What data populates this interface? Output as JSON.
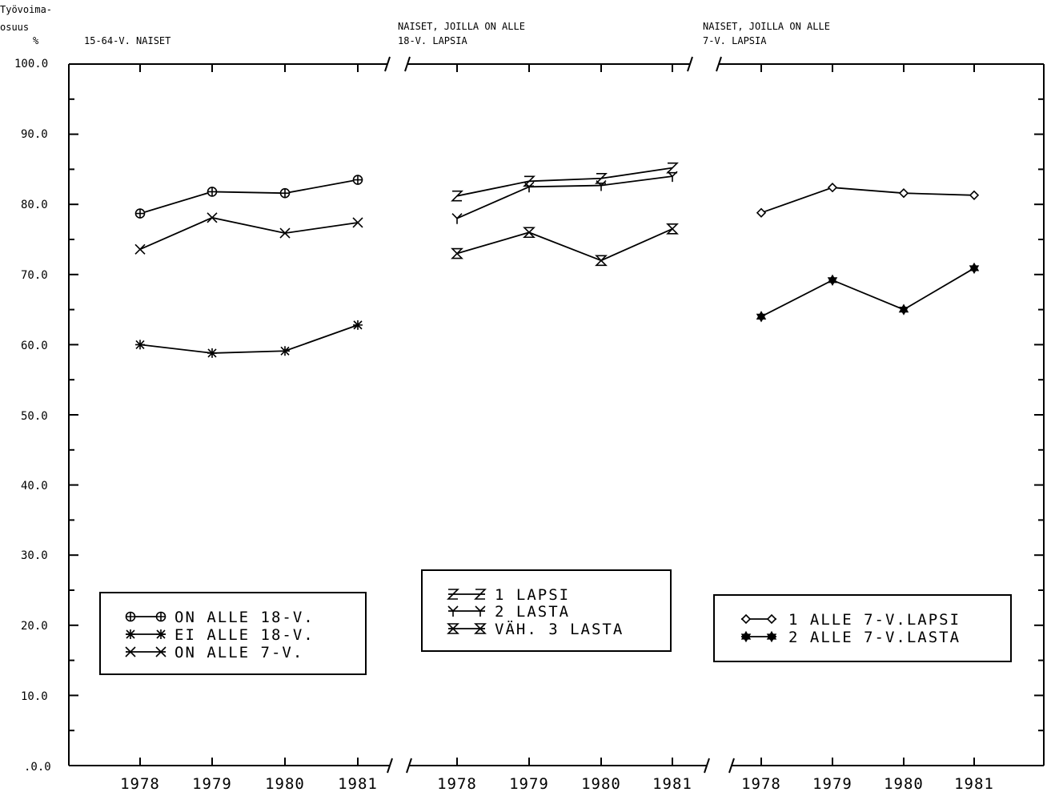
{
  "ylabel": {
    "line1": "Työvoima-",
    "line2": "osuus",
    "unit": "%"
  },
  "panel_titles": [
    {
      "line1": "15-64-V. NAISET",
      "line2": ""
    },
    {
      "line1": "NAISET, JOILLA ON ALLE",
      "line2": "18-V. LAPSIA"
    },
    {
      "line1": "NAISET, JOILLA ON ALLE",
      "line2": "7-V. LAPSIA"
    }
  ],
  "yticks": [
    "100.0",
    "90.0",
    "80.0",
    "70.0",
    "60.0",
    "50.0",
    "40.0",
    "30.0",
    "20.0",
    "10.0",
    ".0.0"
  ],
  "chart_data": [
    {
      "type": "line",
      "title": "15-64-V. NAISET",
      "ylabel": "Työvoima-osuus %",
      "ylim": [
        0,
        100
      ],
      "categories": [
        "1978",
        "1979",
        "1980",
        "1981"
      ],
      "series": [
        {
          "name": "ON ALLE 18-V.",
          "marker": "circle-cross",
          "values": [
            78.7,
            81.8,
            81.6,
            83.5
          ]
        },
        {
          "name": "EI ALLE 18-V.",
          "marker": "asterisk",
          "values": [
            60.0,
            58.8,
            59.1,
            62.8
          ]
        },
        {
          "name": "ON ALLE 7-V.",
          "marker": "x",
          "values": [
            73.6,
            78.1,
            75.9,
            77.4
          ]
        }
      ]
    },
    {
      "type": "line",
      "title": "NAISET, JOILLA ON ALLE 18-V. LAPSIA",
      "ylim": [
        0,
        100
      ],
      "categories": [
        "1978",
        "1979",
        "1980",
        "1981"
      ],
      "series": [
        {
          "name": "1 LAPSI",
          "marker": "Z",
          "values": [
            81.2,
            83.3,
            83.7,
            85.2
          ]
        },
        {
          "name": "2 LASTA",
          "marker": "Y",
          "values": [
            78.0,
            82.5,
            82.7,
            84.0
          ]
        },
        {
          "name": "VÄH. 3 LASTA",
          "marker": "hourglass",
          "values": [
            73.0,
            76.0,
            72.0,
            76.5
          ]
        }
      ]
    },
    {
      "type": "line",
      "title": "NAISET, JOILLA ON ALLE 7-V. LAPSIA",
      "ylim": [
        0,
        100
      ],
      "categories": [
        "1978",
        "1979",
        "1980",
        "1981"
      ],
      "series": [
        {
          "name": "1 ALLE 7-V.LAPSI",
          "marker": "diamond",
          "values": [
            78.8,
            82.4,
            81.6,
            81.3
          ]
        },
        {
          "name": "2 ALLE 7-V.LASTA",
          "marker": "star",
          "values": [
            64.0,
            69.2,
            65.0,
            70.9
          ]
        }
      ]
    }
  ],
  "legend_labels": [
    [
      "ON ALLE 18-V.",
      "EI ALLE 18-V.",
      "ON ALLE 7-V."
    ],
    [
      "1 LAPSI",
      "2 LASTA",
      "VÄH. 3 LASTA"
    ],
    [
      "1 ALLE 7-V.LAPSI",
      "2 ALLE 7-V.LASTA"
    ]
  ],
  "colors": {
    "ink": "#000000",
    "background": "#ffffff"
  }
}
